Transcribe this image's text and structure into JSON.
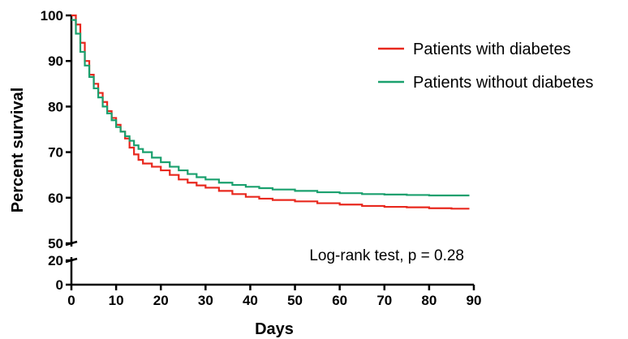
{
  "chart_data": {
    "type": "line",
    "step": true,
    "xlabel": "Days",
    "ylabel": "Percent survival",
    "xlim": [
      0,
      90
    ],
    "x_ticks": [
      0,
      10,
      20,
      30,
      40,
      50,
      60,
      70,
      80,
      90
    ],
    "y_axis_broken": true,
    "y_lower_segment": {
      "range": [
        0,
        20
      ],
      "ticks": [
        0,
        20
      ]
    },
    "y_upper_segment": {
      "range": [
        50,
        100
      ],
      "ticks": [
        50,
        60,
        70,
        80,
        90,
        100
      ]
    },
    "grid": false,
    "legend_position": "top-right",
    "annotation": "Log-rank test, p = 0.28",
    "series": [
      {
        "name": "Patients with diabetes",
        "color": "#e8281e",
        "points": [
          [
            0,
            100
          ],
          [
            1,
            98
          ],
          [
            2,
            94
          ],
          [
            3,
            90
          ],
          [
            4,
            87
          ],
          [
            5,
            85
          ],
          [
            6,
            83
          ],
          [
            7,
            81
          ],
          [
            8,
            79
          ],
          [
            9,
            77.5
          ],
          [
            10,
            76
          ],
          [
            11,
            74.5
          ],
          [
            12,
            73
          ],
          [
            13,
            71
          ],
          [
            14,
            69.5
          ],
          [
            15,
            68.3
          ],
          [
            16,
            67.5
          ],
          [
            18,
            66.8
          ],
          [
            20,
            66
          ],
          [
            22,
            65
          ],
          [
            24,
            64
          ],
          [
            26,
            63.3
          ],
          [
            28,
            62.7
          ],
          [
            30,
            62.2
          ],
          [
            33,
            61.5
          ],
          [
            36,
            60.8
          ],
          [
            39,
            60.2
          ],
          [
            42,
            59.8
          ],
          [
            45,
            59.5
          ],
          [
            50,
            59.2
          ],
          [
            55,
            58.8
          ],
          [
            60,
            58.5
          ],
          [
            65,
            58.2
          ],
          [
            70,
            58
          ],
          [
            75,
            57.9
          ],
          [
            80,
            57.7
          ],
          [
            85,
            57.6
          ],
          [
            89,
            57.6
          ]
        ]
      },
      {
        "name": "Patients without diabetes",
        "color": "#1aa06e",
        "points": [
          [
            0,
            99
          ],
          [
            1,
            96
          ],
          [
            2,
            92
          ],
          [
            3,
            89
          ],
          [
            4,
            86.5
          ],
          [
            5,
            84
          ],
          [
            6,
            82
          ],
          [
            7,
            80
          ],
          [
            8,
            78.5
          ],
          [
            9,
            77
          ],
          [
            10,
            75.5
          ],
          [
            11,
            74.5
          ],
          [
            12,
            73.5
          ],
          [
            13,
            72.5
          ],
          [
            14,
            71.5
          ],
          [
            15,
            70.7
          ],
          [
            16,
            70
          ],
          [
            18,
            68.8
          ],
          [
            20,
            67.8
          ],
          [
            22,
            66.8
          ],
          [
            24,
            66
          ],
          [
            26,
            65.2
          ],
          [
            28,
            64.5
          ],
          [
            30,
            64
          ],
          [
            33,
            63.3
          ],
          [
            36,
            62.8
          ],
          [
            39,
            62.4
          ],
          [
            42,
            62.1
          ],
          [
            45,
            61.8
          ],
          [
            50,
            61.5
          ],
          [
            55,
            61.2
          ],
          [
            60,
            61
          ],
          [
            65,
            60.8
          ],
          [
            70,
            60.7
          ],
          [
            75,
            60.6
          ],
          [
            80,
            60.5
          ],
          [
            85,
            60.5
          ],
          [
            89,
            60.5
          ]
        ]
      }
    ]
  }
}
